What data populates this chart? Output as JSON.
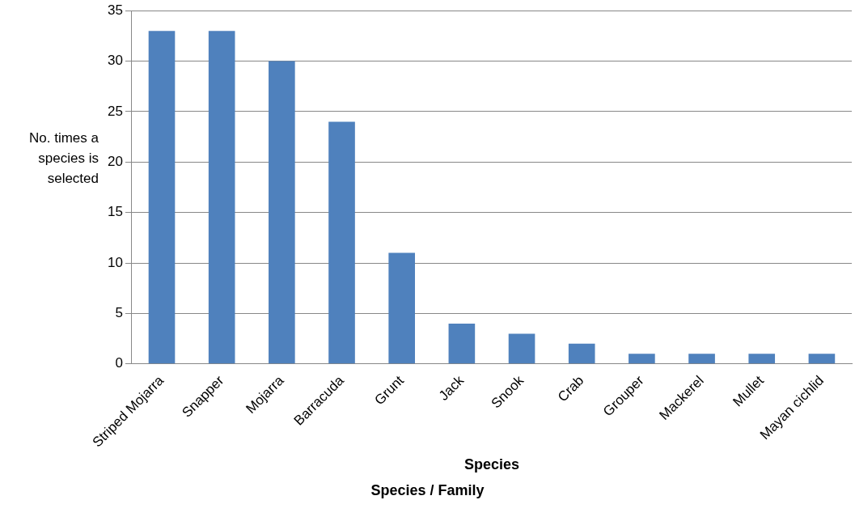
{
  "chart_data": {
    "type": "bar",
    "xlabel": "Species",
    "ylabel": "No. times a species is selected",
    "categories": [
      "Striped Mojarra",
      "Snapper",
      "Mojarra",
      "Barracuda",
      "Grunt",
      "Jack",
      "Snook",
      "Crab",
      "Grouper",
      "Mackerel",
      "Mullet",
      "Mayan cichlid"
    ],
    "values": [
      33,
      33,
      30,
      24,
      11,
      4,
      3,
      2,
      1,
      1,
      1,
      1
    ],
    "color": "#4f81bd",
    "ylim": [
      0,
      35
    ],
    "yticks": [
      0,
      5,
      10,
      15,
      20,
      25,
      30,
      35
    ],
    "grid": "y",
    "legend": false,
    "annotations": [
      "Species / Family"
    ]
  }
}
